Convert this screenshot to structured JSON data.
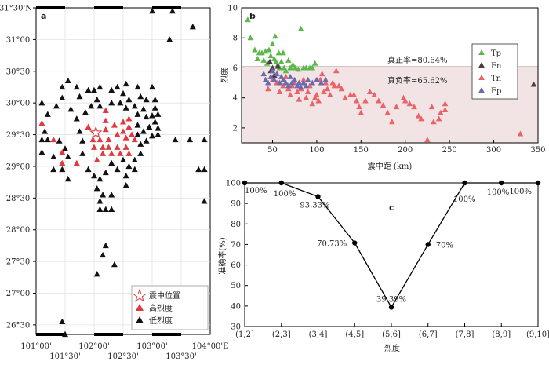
{
  "chart_data": [
    {
      "panel": "a",
      "type": "scatter",
      "x_ticks_top": [
        "",
        "",
        "",
        ""
      ],
      "x_ticks_bottom_row1": [
        "101°00'",
        "102°00'",
        "103°00'",
        "104°00'E"
      ],
      "x_ticks_bottom_row2": [
        "101°30'",
        "102°30'",
        "103°30'"
      ],
      "y_ticks": [
        "31°30'N",
        "31°00'",
        "30°30'",
        "30°00'",
        "29°30'",
        "29°00'",
        "28°30'",
        "28°00'",
        "27°30'",
        "27°00'",
        "26°30'"
      ],
      "xlim": [
        101.0,
        104.0
      ],
      "ylim": [
        26.35,
        31.5
      ],
      "legend": [
        "震中位置",
        "高烈度",
        "低烈度"
      ],
      "epicenter": [
        [
          102.03,
          29.53
        ]
      ],
      "high": [
        [
          101.1,
          29.68
        ],
        [
          101.3,
          29.42
        ],
        [
          101.45,
          29.22
        ],
        [
          101.45,
          29.05
        ],
        [
          101.7,
          29.05
        ],
        [
          101.9,
          29.62
        ],
        [
          101.98,
          29.42
        ],
        [
          102.0,
          29.3
        ],
        [
          102.05,
          29.1
        ],
        [
          102.1,
          29.42
        ],
        [
          102.15,
          29.3
        ],
        [
          102.15,
          29.2
        ],
        [
          102.2,
          29.88
        ],
        [
          102.2,
          29.72
        ],
        [
          102.2,
          29.58
        ],
        [
          102.25,
          29.42
        ],
        [
          102.25,
          29.3
        ],
        [
          102.3,
          29.2
        ],
        [
          102.35,
          29.65
        ],
        [
          102.4,
          29.5
        ],
        [
          102.4,
          29.3
        ],
        [
          102.45,
          29.2
        ],
        [
          102.5,
          29.7
        ],
        [
          102.5,
          29.55
        ],
        [
          102.55,
          29.45
        ],
        [
          102.55,
          29.3
        ],
        [
          102.6,
          29.75
        ],
        [
          102.6,
          29.62
        ],
        [
          102.65,
          29.5
        ],
        [
          102.6,
          29.2
        ],
        [
          102.7,
          29.42
        ]
      ],
      "low": [
        [
          103.0,
          31.45
        ],
        [
          103.35,
          31.45
        ],
        [
          103.7,
          31.2
        ],
        [
          103.3,
          31.0
        ],
        [
          101.45,
          30.25
        ],
        [
          101.55,
          30.35
        ],
        [
          101.7,
          30.25
        ],
        [
          101.75,
          30.1
        ],
        [
          101.9,
          30.2
        ],
        [
          102.0,
          30.2
        ],
        [
          102.1,
          30.25
        ],
        [
          102.3,
          30.2
        ],
        [
          102.4,
          30.25
        ],
        [
          102.5,
          30.15
        ],
        [
          102.55,
          30.3
        ],
        [
          102.75,
          30.25
        ],
        [
          102.8,
          30.1
        ],
        [
          102.9,
          30.05
        ],
        [
          103.0,
          30.25
        ],
        [
          103.05,
          30.05
        ],
        [
          101.1,
          30.0
        ],
        [
          101.2,
          29.82
        ],
        [
          101.35,
          29.95
        ],
        [
          101.45,
          30.08
        ],
        [
          101.6,
          29.9
        ],
        [
          101.7,
          29.75
        ],
        [
          101.85,
          29.85
        ],
        [
          101.95,
          29.95
        ],
        [
          102.05,
          30.05
        ],
        [
          102.1,
          29.95
        ],
        [
          102.3,
          30.0
        ],
        [
          102.45,
          30.0
        ],
        [
          102.55,
          29.92
        ],
        [
          102.6,
          30.05
        ],
        [
          102.7,
          29.95
        ],
        [
          102.75,
          29.82
        ],
        [
          102.85,
          29.9
        ],
        [
          102.9,
          29.78
        ],
        [
          103.0,
          29.8
        ],
        [
          103.05,
          29.92
        ],
        [
          103.1,
          29.82
        ],
        [
          103.05,
          29.7
        ],
        [
          102.95,
          29.62
        ],
        [
          102.85,
          29.55
        ],
        [
          102.75,
          29.65
        ],
        [
          102.75,
          29.5
        ],
        [
          102.8,
          29.35
        ],
        [
          102.9,
          29.4
        ],
        [
          103.0,
          29.48
        ],
        [
          103.1,
          29.5
        ],
        [
          103.1,
          29.6
        ],
        [
          102.8,
          29.2
        ],
        [
          102.7,
          29.1
        ],
        [
          102.6,
          29.0
        ],
        [
          102.5,
          29.1
        ],
        [
          102.4,
          28.95
        ],
        [
          102.3,
          29.05
        ],
        [
          102.2,
          28.9
        ],
        [
          102.1,
          28.8
        ],
        [
          102.0,
          28.85
        ],
        [
          101.9,
          28.95
        ],
        [
          102.05,
          28.65
        ],
        [
          102.15,
          28.55
        ],
        [
          102.1,
          28.45
        ],
        [
          102.3,
          28.55
        ],
        [
          102.55,
          28.7
        ],
        [
          102.55,
          28.85
        ],
        [
          102.7,
          28.95
        ],
        [
          101.1,
          29.42
        ],
        [
          101.15,
          29.55
        ],
        [
          101.2,
          29.42
        ],
        [
          101.1,
          29.22
        ],
        [
          101.3,
          29.15
        ],
        [
          101.4,
          29.4
        ],
        [
          101.5,
          29.28
        ],
        [
          101.55,
          29.15
        ],
        [
          101.75,
          29.55
        ],
        [
          101.8,
          29.4
        ],
        [
          101.8,
          29.2
        ],
        [
          101.45,
          28.95
        ],
        [
          101.55,
          28.8
        ],
        [
          101.3,
          28.95
        ],
        [
          103.4,
          29.42
        ],
        [
          103.65,
          29.42
        ],
        [
          103.9,
          29.42
        ],
        [
          103.8,
          28.95
        ],
        [
          103.9,
          28.95
        ],
        [
          103.9,
          28.45
        ],
        [
          102.1,
          28.32
        ],
        [
          102.2,
          28.32
        ],
        [
          102.3,
          28.32
        ],
        [
          102.2,
          27.75
        ],
        [
          102.15,
          27.6
        ],
        [
          102.35,
          27.45
        ],
        [
          102.05,
          27.3
        ],
        [
          101.45,
          26.55
        ],
        [
          101.5,
          26.35
        ]
      ]
    },
    {
      "panel": "b",
      "type": "scatter",
      "xlabel": "震中距 (km)",
      "ylabel": "烈度",
      "xlim": [
        15,
        350
      ],
      "ylim": [
        1,
        10
      ],
      "x_ticks": [
        50,
        100,
        150,
        200,
        250,
        300,
        350
      ],
      "y_ticks": [
        2,
        4,
        6,
        8,
        10
      ],
      "shaded_region_ymax": 6.1,
      "annotations": [
        "真正率=80.64%",
        "真负率=65.62%"
      ],
      "legend": [
        "Tp",
        "Fn",
        "Tn",
        "Fp"
      ],
      "series": [
        {
          "name": "Tp",
          "color": "#5cb84a",
          "points": [
            [
              22,
              9.2
            ],
            [
              25,
              8.0
            ],
            [
              30,
              7.2
            ],
            [
              33,
              6.6
            ],
            [
              35,
              7.0
            ],
            [
              38,
              7.0
            ],
            [
              40,
              6.5
            ],
            [
              42,
              7.1
            ],
            [
              44,
              6.3
            ],
            [
              46,
              7.2
            ],
            [
              48,
              6.8
            ],
            [
              50,
              7.6
            ],
            [
              52,
              6.6
            ],
            [
              54,
              6.4
            ],
            [
              56,
              6.2
            ],
            [
              58,
              6.0
            ],
            [
              60,
              6.4
            ],
            [
              63,
              6.0
            ],
            [
              65,
              5.8
            ],
            [
              68,
              6.5
            ],
            [
              70,
              6.0
            ],
            [
              73,
              6.2
            ],
            [
              76,
              6.0
            ],
            [
              79,
              5.9
            ],
            [
              82,
              8.6
            ],
            [
              85,
              6.0
            ],
            [
              88,
              6.0
            ],
            [
              92,
              6.0
            ],
            [
              95,
              6.0
            ],
            [
              98,
              6.3
            ],
            [
              53,
              8.1
            ],
            [
              57,
              7.0
            ],
            [
              62,
              7.0
            ]
          ]
        },
        {
          "name": "Fn",
          "color": "#4a3a44",
          "points": [
            [
              47,
              6.4
            ],
            [
              50,
              6.0
            ],
            [
              48,
              5.8
            ],
            [
              52,
              5.5
            ],
            [
              56,
              6.1
            ],
            [
              345,
              4.9
            ]
          ]
        },
        {
          "name": "Tn",
          "color": "#e96468",
          "points": [
            [
              45,
              4.6
            ],
            [
              50,
              5.2
            ],
            [
              55,
              5.0
            ],
            [
              58,
              4.4
            ],
            [
              62,
              4.8
            ],
            [
              65,
              5.4
            ],
            [
              68,
              4.6
            ],
            [
              70,
              4.2
            ],
            [
              72,
              4.8
            ],
            [
              75,
              5.0
            ],
            [
              78,
              4.4
            ],
            [
              80,
              3.9
            ],
            [
              82,
              4.6
            ],
            [
              85,
              5.2
            ],
            [
              88,
              4.0
            ],
            [
              90,
              4.4
            ],
            [
              92,
              4.8
            ],
            [
              95,
              3.6
            ],
            [
              98,
              4.0
            ],
            [
              100,
              4.2
            ],
            [
              102,
              3.8
            ],
            [
              104,
              5.2
            ],
            [
              106,
              5.6
            ],
            [
              108,
              4.4
            ],
            [
              110,
              5.0
            ],
            [
              112,
              4.6
            ],
            [
              115,
              4.2
            ],
            [
              118,
              5.0
            ],
            [
              120,
              4.8
            ],
            [
              122,
              5.8
            ],
            [
              125,
              4.8
            ],
            [
              128,
              4.6
            ],
            [
              132,
              4.0
            ],
            [
              138,
              4.2
            ],
            [
              142,
              4.2
            ],
            [
              145,
              3.8
            ],
            [
              148,
              3.4
            ],
            [
              150,
              3.0
            ],
            [
              155,
              3.8
            ],
            [
              160,
              4.4
            ],
            [
              165,
              4.2
            ],
            [
              170,
              3.8
            ],
            [
              175,
              3.5
            ],
            [
              180,
              3.0
            ],
            [
              185,
              2.4
            ],
            [
              190,
              3.4
            ],
            [
              198,
              4.0
            ],
            [
              200,
              3.8
            ],
            [
              205,
              3.6
            ],
            [
              210,
              3.4
            ],
            [
              215,
              2.8
            ],
            [
              218,
              2.6
            ],
            [
              225,
              1.2
            ],
            [
              232,
              2.4
            ],
            [
              238,
              2.6
            ],
            [
              240,
              3.0
            ],
            [
              245,
              3.6
            ],
            [
              230,
              3.4
            ],
            [
              330,
              1.6
            ],
            [
              245,
              3.2
            ]
          ]
        },
        {
          "name": "Fp",
          "color": "#6a6aac",
          "points": [
            [
              40,
              5.6
            ],
            [
              42,
              5.2
            ],
            [
              45,
              5.0
            ],
            [
              48,
              5.4
            ],
            [
              50,
              5.8
            ],
            [
              52,
              5.2
            ],
            [
              55,
              5.6
            ],
            [
              58,
              5.0
            ],
            [
              60,
              5.4
            ],
            [
              62,
              5.2
            ],
            [
              65,
              5.0
            ],
            [
              68,
              4.8
            ],
            [
              70,
              5.4
            ],
            [
              72,
              5.0
            ],
            [
              75,
              5.2
            ],
            [
              78,
              4.8
            ],
            [
              80,
              5.0
            ],
            [
              82,
              4.7
            ],
            [
              85,
              5.0
            ],
            [
              88,
              4.8
            ],
            [
              90,
              5.2
            ],
            [
              95,
              5.0
            ],
            [
              100,
              5.2
            ],
            [
              105,
              5.0
            ],
            [
              110,
              5.2
            ]
          ]
        }
      ]
    },
    {
      "panel": "c",
      "type": "line",
      "xlabel": "烈度",
      "ylabel": "准确率(%)",
      "categories": [
        "(1,2]",
        "(2,3]",
        "(3,4]",
        "(4,5]",
        "(5,6]",
        "(6,7]",
        "(7,8]",
        "(8,9]",
        "(9,10]"
      ],
      "values": [
        100,
        100,
        93.33,
        70.73,
        39.39,
        70,
        100,
        100,
        100
      ],
      "data_labels": [
        "100%",
        "100%",
        "93.33%",
        "70.73%",
        "39.39%",
        "70%",
        "100%",
        "100%",
        "100%"
      ],
      "y_ticks": [
        30,
        40,
        50,
        60,
        70,
        80,
        90,
        100
      ],
      "ylim": [
        30,
        100
      ]
    }
  ],
  "panels": {
    "a": "a",
    "b": "b",
    "c": "c"
  },
  "colors": {
    "high": "#e03a3e",
    "low": "#111111",
    "shade": "#f2e4e4"
  }
}
